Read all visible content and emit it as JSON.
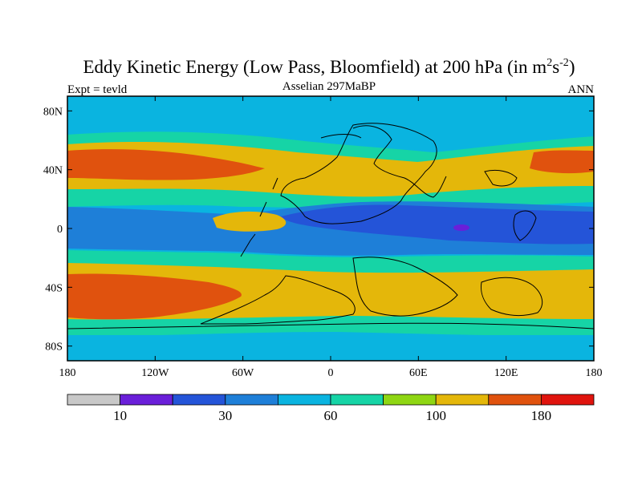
{
  "chart_data": {
    "type": "heatmap",
    "title_main": "Eddy Kinetic Energy (Low Pass, Bloomfield) at 200 hPa (in m",
    "title_exp1": "2",
    "title_mid": "s",
    "title_exp2": "-2",
    "title_close": ")",
    "left_label": "Expt = tevld",
    "center_label": "Asselian 297MaBP",
    "right_label": "ANN",
    "x_ticks": [
      "180",
      "120W",
      "60W",
      "0",
      "60E",
      "120E",
      "180"
    ],
    "x_values": [
      -180,
      -120,
      -60,
      0,
      60,
      120,
      180
    ],
    "y_ticks": [
      "80N",
      "40N",
      "0",
      "40S",
      "80S"
    ],
    "y_values": [
      80,
      40,
      0,
      -40,
      -80
    ],
    "xlim": [
      -180,
      180
    ],
    "ylim": [
      -90,
      90
    ],
    "colorbar": {
      "colors": [
        "#c8c8c8",
        "#6a1fd9",
        "#2454d8",
        "#1e7fd8",
        "#0ab4e0",
        "#16d4a6",
        "#8fd613",
        "#e4b70a",
        "#e0520e",
        "#e0140e"
      ],
      "labels": [
        "10",
        "30",
        "60",
        "100",
        "180"
      ],
      "label_after_box": [
        1,
        3,
        5,
        7,
        9
      ]
    },
    "field_bands": [
      {
        "lat_range": [
          72,
          90
        ],
        "level": 4
      },
      {
        "lat_range": [
          55,
          72
        ],
        "level": 5
      },
      {
        "lat_range": [
          32,
          52
        ],
        "level": 8,
        "note": "maxima over Pacific and far west"
      },
      {
        "lat_range": [
          22,
          32
        ],
        "level": 7
      },
      {
        "lat_range": [
          8,
          20
        ],
        "level": 4
      },
      {
        "lat_range": [
          -8,
          8
        ],
        "level": 2,
        "note": "minimum near 90E"
      },
      {
        "lat_range": [
          -22,
          -8
        ],
        "level": 4
      },
      {
        "lat_range": [
          -32,
          -22
        ],
        "level": 7
      },
      {
        "lat_range": [
          -52,
          -32
        ],
        "level": 8,
        "note": "maximum over Pacific"
      },
      {
        "lat_range": [
          -72,
          -55
        ],
        "level": 5
      },
      {
        "lat_range": [
          -90,
          -72
        ],
        "level": 4
      }
    ]
  }
}
